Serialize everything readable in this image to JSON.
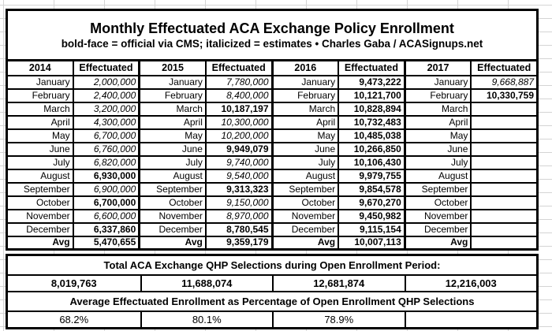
{
  "title": "Monthly Effectuated ACA Exchange Policy Enrollment",
  "subtitle": "bold-face = official via CMS; italicized = estimates  •  Charles Gaba / ACASignups.net",
  "colors": {
    "border": "#000000",
    "grid_line": "#d4d4d4",
    "background": "#ffffff"
  },
  "months": [
    "January",
    "February",
    "March",
    "April",
    "May",
    "June",
    "July",
    "August",
    "September",
    "October",
    "November",
    "December",
    "Avg"
  ],
  "years": [
    {
      "label": "2014",
      "value_header": "Effectuated",
      "values": [
        "2,000,000",
        "2,400,000",
        "3,200,000",
        "4,300,000",
        "6,700,000",
        "6,760,000",
        "6,820,000",
        "6,930,000",
        "6,900,000",
        "6,700,000",
        "6,600,000",
        "6,337,860",
        "5,470,655"
      ],
      "styles": [
        "est",
        "est",
        "est",
        "est",
        "est",
        "est",
        "est",
        "cms",
        "est",
        "cms",
        "est",
        "cms",
        "cms"
      ]
    },
    {
      "label": "2015",
      "value_header": "Effectuated",
      "values": [
        "7,780,000",
        "8,400,000",
        "10,187,197",
        "10,300,000",
        "10,200,000",
        "9,949,079",
        "9,740,000",
        "9,540,000",
        "9,313,323",
        "9,150,000",
        "8,970,000",
        "8,780,545",
        "9,359,179"
      ],
      "styles": [
        "est",
        "est",
        "cms",
        "est",
        "est",
        "cms",
        "est",
        "est",
        "cms",
        "est",
        "est",
        "cms",
        "cms"
      ]
    },
    {
      "label": "2016",
      "value_header": "Effectuated",
      "values": [
        "9,473,222",
        "10,121,700",
        "10,828,894",
        "10,732,483",
        "10,485,038",
        "10,266,850",
        "10,106,430",
        "9,979,755",
        "9,854,578",
        "9,670,270",
        "9,450,982",
        "9,115,154",
        "10,007,113"
      ],
      "styles": [
        "cms",
        "cms",
        "cms",
        "cms",
        "cms",
        "cms",
        "cms",
        "cms",
        "cms",
        "cms",
        "cms",
        "cms",
        "cms"
      ]
    },
    {
      "label": "2017",
      "value_header": "Effectuated",
      "values": [
        "9,668,887",
        "10,330,759",
        "",
        "",
        "",
        "",
        "",
        "",
        "",
        "",
        "",
        "",
        " "
      ],
      "styles": [
        "est",
        "cms",
        "",
        "",
        "",
        "",
        "",
        "",
        "",
        "",
        "",
        "",
        ""
      ]
    }
  ],
  "totals": {
    "heading": "Total ACA Exchange QHP Selections during Open Enrollment Period:",
    "values": [
      "8,019,763",
      "11,688,074",
      "12,681,874",
      "12,216,003"
    ]
  },
  "percentages": {
    "heading": "Average Effectuated Enrollment as Percentage of Open Enrollment QHP Selections",
    "values": [
      "68.2%",
      "80.1%",
      "78.9%",
      ""
    ]
  }
}
